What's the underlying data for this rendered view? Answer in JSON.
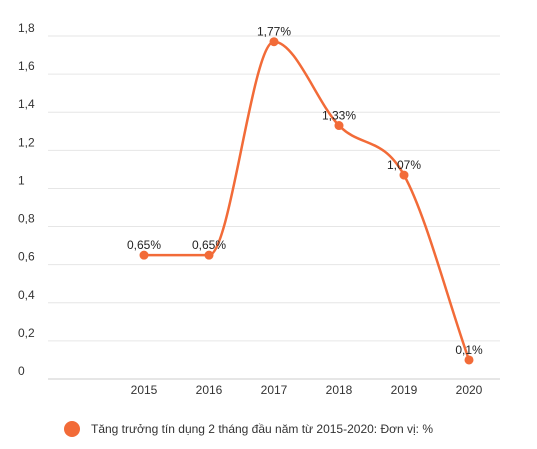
{
  "chart_data": {
    "type": "line",
    "title": "",
    "xlabel": "",
    "ylabel": "",
    "categories": [
      "2015",
      "2016",
      "2017",
      "2018",
      "2019",
      "2020"
    ],
    "series": [
      {
        "name": "Tăng trưởng tín dụng 2 tháng đầu năm từ 2015-2020: Đơn vị: %",
        "values": [
          0.65,
          0.65,
          1.77,
          1.33,
          1.07,
          0.1
        ],
        "data_labels": [
          "0,65%",
          "0,65%",
          "1,77%",
          "1,33%",
          "1,07%",
          "0,1%"
        ],
        "color": "#f26b38"
      }
    ],
    "yticks": [
      0,
      0.2,
      0.4,
      0.6,
      0.8,
      1,
      1.2,
      1.4,
      1.6,
      1.8
    ],
    "ytick_labels": [
      "0",
      "0,2",
      "0,4",
      "0,6",
      "0,8",
      "1",
      "1,2",
      "1,4",
      "1,6",
      "1,8"
    ],
    "ylim": [
      0,
      1.8
    ],
    "grid": "horizontal",
    "legend_position": "bottom",
    "smooth": true,
    "colors": {
      "grid": "#e6e6e6",
      "axis": "#cccccc",
      "text": "#333333"
    }
  }
}
